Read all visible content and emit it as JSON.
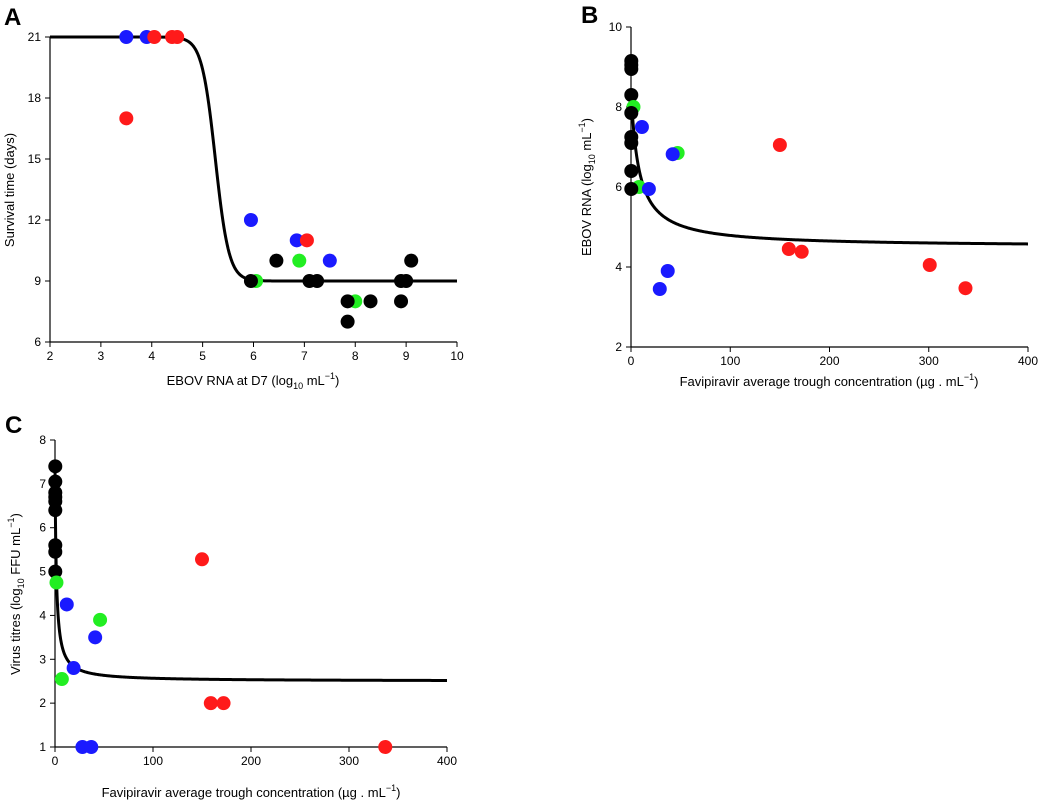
{
  "colors": {
    "group_red": "#ff1a1a",
    "group_blue": "#1a1aff",
    "group_green": "#22ee22",
    "group_black": "#000000",
    "axis": "#000000",
    "curve": "#000000"
  },
  "chart_data": [
    {
      "id": "A",
      "letter": "A",
      "type": "scatter",
      "xlabel_main": "EBOV RNA at D7 (log",
      "xlabel_sub": "10",
      "xlabel_tail": " mL",
      "xlabel_sup": "−1",
      "xlabel_end": ")",
      "ylabel": "Survival time (days)",
      "xlim": [
        2,
        10
      ],
      "ylim": [
        6,
        21
      ],
      "xticks": [
        2,
        3,
        4,
        5,
        6,
        7,
        8,
        9,
        10
      ],
      "yticks": [
        6,
        9,
        12,
        15,
        18,
        21
      ],
      "grid": false,
      "curve": {
        "model": "sigmoid",
        "top": 21,
        "bottom": 9,
        "midpoint": 5.25,
        "slope": 7.5,
        "x_range": [
          2,
          10
        ]
      },
      "points": [
        {
          "x": 3.5,
          "y": 21,
          "c": "blue"
        },
        {
          "x": 3.9,
          "y": 21,
          "c": "blue"
        },
        {
          "x": 4.05,
          "y": 21,
          "c": "red"
        },
        {
          "x": 4.4,
          "y": 21,
          "c": "red"
        },
        {
          "x": 4.5,
          "y": 21,
          "c": "red"
        },
        {
          "x": 3.5,
          "y": 17,
          "c": "red"
        },
        {
          "x": 5.95,
          "y": 12,
          "c": "blue"
        },
        {
          "x": 6.05,
          "y": 9,
          "c": "green"
        },
        {
          "x": 5.95,
          "y": 9,
          "c": "black"
        },
        {
          "x": 6.45,
          "y": 10,
          "c": "black"
        },
        {
          "x": 6.85,
          "y": 11,
          "c": "blue"
        },
        {
          "x": 7.05,
          "y": 11,
          "c": "red"
        },
        {
          "x": 6.9,
          "y": 10,
          "c": "green"
        },
        {
          "x": 7.1,
          "y": 9,
          "c": "black"
        },
        {
          "x": 7.25,
          "y": 9,
          "c": "black"
        },
        {
          "x": 7.5,
          "y": 10,
          "c": "blue"
        },
        {
          "x": 8.0,
          "y": 8,
          "c": "green"
        },
        {
          "x": 7.85,
          "y": 8,
          "c": "black"
        },
        {
          "x": 8.3,
          "y": 8,
          "c": "black"
        },
        {
          "x": 7.85,
          "y": 7,
          "c": "black"
        },
        {
          "x": 8.9,
          "y": 8,
          "c": "black"
        },
        {
          "x": 8.9,
          "y": 9,
          "c": "black"
        },
        {
          "x": 9.0,
          "y": 9,
          "c": "black"
        },
        {
          "x": 9.1,
          "y": 10,
          "c": "black"
        }
      ]
    },
    {
      "id": "B",
      "letter": "B",
      "type": "scatter",
      "xlabel_main": "Favipiravir average trough concentration (µg . mL",
      "xlabel_sub": "",
      "xlabel_tail": "",
      "xlabel_sup": "−1",
      "xlabel_end": ")",
      "ylabel_main": "EBOV RNA (log",
      "ylabel_sub": "10",
      "ylabel_tail": " mL",
      "ylabel_sup": "−1",
      "ylabel_end": ")",
      "xlim": [
        0,
        400
      ],
      "ylim": [
        2,
        10
      ],
      "xticks": [
        0,
        100,
        200,
        300,
        400
      ],
      "yticks": [
        2,
        4,
        6,
        8,
        10
      ],
      "grid": false,
      "curve": {
        "model": "emax",
        "e0": 8.4,
        "emax": 3.9,
        "ec50": 8.0,
        "x_range": [
          0,
          400
        ]
      },
      "points": [
        {
          "x": 0.3,
          "y": 9.15,
          "c": "black"
        },
        {
          "x": 0.3,
          "y": 9.05,
          "c": "black"
        },
        {
          "x": 0.3,
          "y": 8.95,
          "c": "black"
        },
        {
          "x": 0.3,
          "y": 8.3,
          "c": "black"
        },
        {
          "x": 2.5,
          "y": 8.0,
          "c": "green"
        },
        {
          "x": 0.3,
          "y": 7.85,
          "c": "black"
        },
        {
          "x": 11,
          "y": 7.5,
          "c": "blue"
        },
        {
          "x": 0.3,
          "y": 7.25,
          "c": "black"
        },
        {
          "x": 0.3,
          "y": 7.1,
          "c": "black"
        },
        {
          "x": 0.3,
          "y": 6.4,
          "c": "black"
        },
        {
          "x": 47,
          "y": 6.85,
          "c": "green"
        },
        {
          "x": 42,
          "y": 6.82,
          "c": "blue"
        },
        {
          "x": 8,
          "y": 6.0,
          "c": "green"
        },
        {
          "x": 0.3,
          "y": 5.95,
          "c": "black"
        },
        {
          "x": 18,
          "y": 5.95,
          "c": "blue"
        },
        {
          "x": 37,
          "y": 3.9,
          "c": "blue"
        },
        {
          "x": 29,
          "y": 3.45,
          "c": "blue"
        },
        {
          "x": 150,
          "y": 7.05,
          "c": "red"
        },
        {
          "x": 159,
          "y": 4.45,
          "c": "red"
        },
        {
          "x": 172,
          "y": 4.38,
          "c": "red"
        },
        {
          "x": 301,
          "y": 4.05,
          "c": "red"
        },
        {
          "x": 337,
          "y": 3.47,
          "c": "red"
        }
      ]
    },
    {
      "id": "C",
      "letter": "C",
      "type": "scatter",
      "xlabel_main": "Favipiravir average trough concentration (µg . mL",
      "xlabel_sub": "",
      "xlabel_tail": "",
      "xlabel_sup": "−1",
      "xlabel_end": ")",
      "ylabel_main": "Virus titres (log",
      "ylabel_sub": "10",
      "ylabel_tail": " FFU mL",
      "ylabel_sup": "−1",
      "ylabel_end": ")",
      "xlim": [
        0,
        400
      ],
      "ylim": [
        1,
        8
      ],
      "xticks": [
        0,
        100,
        200,
        300,
        400
      ],
      "yticks": [
        1,
        2,
        3,
        4,
        5,
        6,
        7,
        8
      ],
      "grid": false,
      "curve": {
        "model": "emax",
        "e0": 7.4,
        "emax": 4.9,
        "ec50": 1.4,
        "x_range": [
          0,
          400
        ]
      },
      "points": [
        {
          "x": 0.3,
          "y": 7.4,
          "c": "black"
        },
        {
          "x": 0.3,
          "y": 7.05,
          "c": "black"
        },
        {
          "x": 0.3,
          "y": 6.8,
          "c": "black"
        },
        {
          "x": 0.3,
          "y": 6.7,
          "c": "black"
        },
        {
          "x": 0.3,
          "y": 6.6,
          "c": "black"
        },
        {
          "x": 0.3,
          "y": 6.4,
          "c": "black"
        },
        {
          "x": 0.3,
          "y": 5.6,
          "c": "black"
        },
        {
          "x": 0.3,
          "y": 5.45,
          "c": "black"
        },
        {
          "x": 0.3,
          "y": 5.0,
          "c": "black"
        },
        {
          "x": 1.5,
          "y": 4.75,
          "c": "green"
        },
        {
          "x": 12,
          "y": 4.25,
          "c": "blue"
        },
        {
          "x": 46,
          "y": 3.9,
          "c": "green"
        },
        {
          "x": 41,
          "y": 3.5,
          "c": "blue"
        },
        {
          "x": 19,
          "y": 2.8,
          "c": "blue"
        },
        {
          "x": 7,
          "y": 2.55,
          "c": "green"
        },
        {
          "x": 28,
          "y": 1.0,
          "c": "blue"
        },
        {
          "x": 37,
          "y": 1.0,
          "c": "blue"
        },
        {
          "x": 150,
          "y": 5.28,
          "c": "red"
        },
        {
          "x": 159,
          "y": 2.0,
          "c": "red"
        },
        {
          "x": 172,
          "y": 2.0,
          "c": "red"
        },
        {
          "x": 337,
          "y": 1.0,
          "c": "red"
        }
      ]
    }
  ]
}
